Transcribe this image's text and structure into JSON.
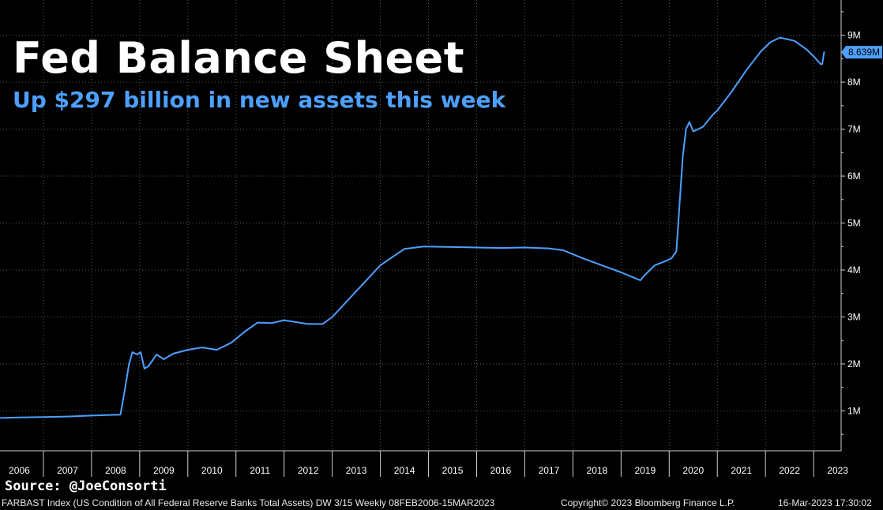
{
  "header": {
    "title": "Fed Balance Sheet",
    "subtitle": "Up $297 billion in new assets this week"
  },
  "source": "Source: @JoeConsorti",
  "footer": {
    "index_info": "FARBAST Index (US Condition of All Federal Reserve Banks Total Assets) DW 3/15  Weekly 08FEB2006-15MAR2023",
    "copyright": "Copyright© 2023 Bloomberg Finance L.P.",
    "timestamp": "16-Mar-2023 17:30:02"
  },
  "colors": {
    "background": "#000000",
    "line": "#4da0ff",
    "grid": "#5a5a5a",
    "axis": "#cfcfcf"
  },
  "chart_data": {
    "type": "line",
    "title": "Fed Balance Sheet",
    "subtitle": "Up $297 billion in new assets this week",
    "xlabel": "",
    "ylabel": "",
    "x_ticks": [
      "2006",
      "2007",
      "2008",
      "2009",
      "2010",
      "2011",
      "2012",
      "2013",
      "2014",
      "2015",
      "2016",
      "2017",
      "2018",
      "2019",
      "2020",
      "2021",
      "2022",
      "2023"
    ],
    "y_ticks": [
      "1M",
      "2M",
      "3M",
      "4M",
      "5M",
      "6M",
      "7M",
      "8M",
      "9M"
    ],
    "ylim": [
      0.15,
      9.75
    ],
    "xlim": [
      2006.1,
      2023.4
    ],
    "last_value_label": "8.639M",
    "grid": true,
    "series": [
      {
        "values": [
          [
            2006.1,
            0.85
          ],
          [
            2006.5,
            0.86
          ],
          [
            2007.0,
            0.87
          ],
          [
            2007.5,
            0.88
          ],
          [
            2008.0,
            0.9
          ],
          [
            2008.6,
            0.92
          ],
          [
            2008.7,
            1.5
          ],
          [
            2008.78,
            2.0
          ],
          [
            2008.85,
            2.25
          ],
          [
            2008.95,
            2.2
          ],
          [
            2009.02,
            2.25
          ],
          [
            2009.1,
            1.9
          ],
          [
            2009.18,
            1.95
          ],
          [
            2009.25,
            2.05
          ],
          [
            2009.35,
            2.2
          ],
          [
            2009.5,
            2.1
          ],
          [
            2009.7,
            2.22
          ],
          [
            2010.0,
            2.3
          ],
          [
            2010.3,
            2.35
          ],
          [
            2010.6,
            2.3
          ],
          [
            2010.9,
            2.45
          ],
          [
            2011.2,
            2.7
          ],
          [
            2011.45,
            2.88
          ],
          [
            2011.75,
            2.87
          ],
          [
            2012.0,
            2.93
          ],
          [
            2012.5,
            2.85
          ],
          [
            2012.8,
            2.85
          ],
          [
            2013.0,
            3.0
          ],
          [
            2013.5,
            3.55
          ],
          [
            2014.0,
            4.1
          ],
          [
            2014.5,
            4.45
          ],
          [
            2014.9,
            4.5
          ],
          [
            2015.5,
            4.49
          ],
          [
            2016.0,
            4.48
          ],
          [
            2016.5,
            4.47
          ],
          [
            2017.0,
            4.48
          ],
          [
            2017.5,
            4.46
          ],
          [
            2017.8,
            4.42
          ],
          [
            2018.2,
            4.25
          ],
          [
            2018.6,
            4.1
          ],
          [
            2019.0,
            3.95
          ],
          [
            2019.4,
            3.78
          ],
          [
            2019.5,
            3.9
          ],
          [
            2019.7,
            4.1
          ],
          [
            2019.95,
            4.2
          ],
          [
            2020.05,
            4.25
          ],
          [
            2020.15,
            4.4
          ],
          [
            2020.28,
            6.4
          ],
          [
            2020.35,
            7.0
          ],
          [
            2020.42,
            7.15
          ],
          [
            2020.5,
            6.95
          ],
          [
            2020.7,
            7.05
          ],
          [
            2020.9,
            7.3
          ],
          [
            2021.0,
            7.4
          ],
          [
            2021.3,
            7.8
          ],
          [
            2021.6,
            8.25
          ],
          [
            2021.9,
            8.65
          ],
          [
            2022.1,
            8.85
          ],
          [
            2022.3,
            8.95
          ],
          [
            2022.6,
            8.88
          ],
          [
            2022.85,
            8.7
          ],
          [
            2023.0,
            8.55
          ],
          [
            2023.15,
            8.38
          ],
          [
            2023.18,
            8.39
          ],
          [
            2023.22,
            8.65
          ]
        ]
      }
    ]
  }
}
